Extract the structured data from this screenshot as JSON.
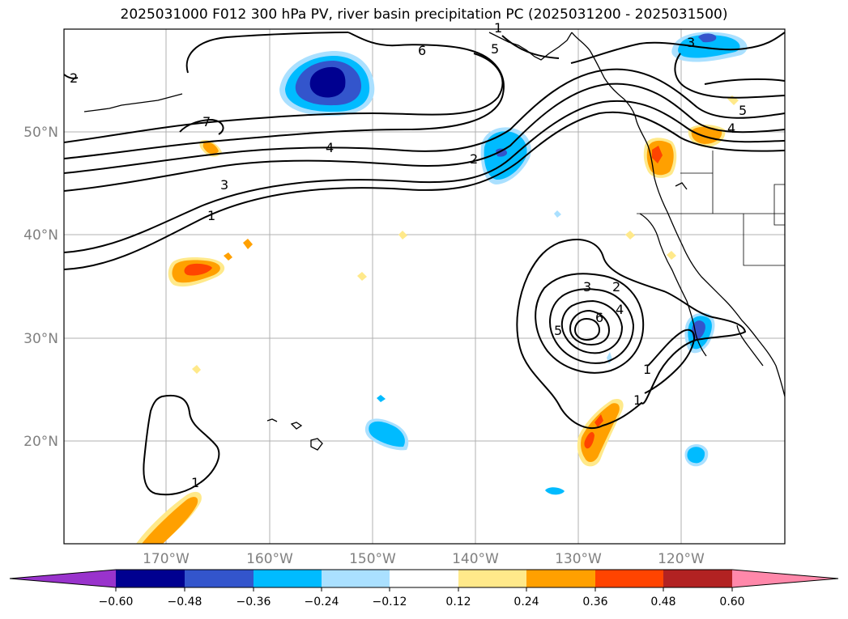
{
  "title": "2025031000 F012 300 hPa PV, river basin precipitation PC (2025031200 - 2025031500)",
  "latitude_ticks": [
    "50°N",
    "40°N",
    "30°N",
    "20°N"
  ],
  "longitude_ticks": [
    "170°W",
    "160°W",
    "150°W",
    "140°W",
    "130°W",
    "120°W"
  ],
  "contour_labels": [
    "6",
    "5",
    "7",
    "4",
    "3",
    "1",
    "2",
    "3",
    "5",
    "4",
    "3",
    "2",
    "4",
    "6",
    "5",
    "1",
    "1",
    "1",
    "2",
    "1"
  ],
  "colorbar": {
    "colors": [
      "#9933cc",
      "#000090",
      "#3355cc",
      "#00bbff",
      "#aae0ff",
      "#ffffff",
      "#ffe98a",
      "#ffa000",
      "#ff4400",
      "#b22222",
      "#ff88aa"
    ],
    "tick_labels": [
      "−0.60",
      "−0.48",
      "−0.36",
      "−0.24",
      "−0.12",
      "0.12",
      "0.24",
      "0.36",
      "0.48",
      "0.60"
    ]
  }
}
